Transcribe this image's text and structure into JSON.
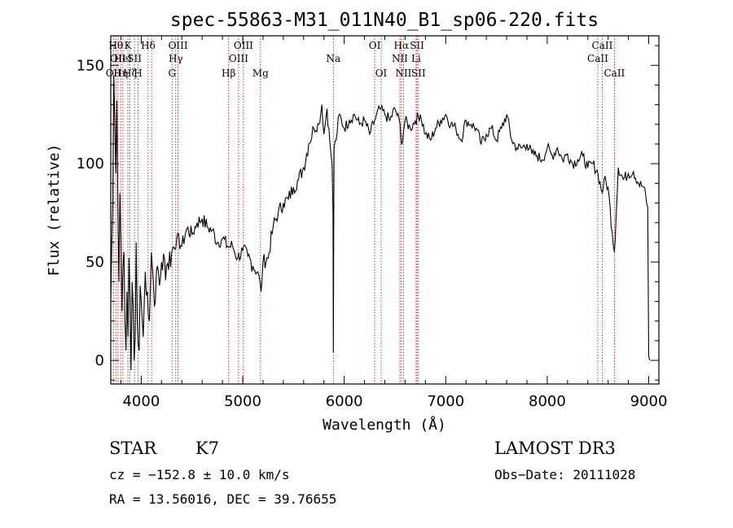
{
  "chart_data": {
    "type": "line",
    "title": "spec-55863-M31_011N40_B1_sp06-220.fits",
    "xlabel": "Wavelength (Å)",
    "ylabel": "Flux (relative)",
    "xlim": [
      3700,
      9100
    ],
    "ylim": [
      -12,
      165
    ],
    "x_ticks": [
      4000,
      5000,
      6000,
      7000,
      8000,
      9000
    ],
    "y_ticks": [
      0,
      50,
      100,
      150
    ],
    "grid": false,
    "line_color": "#000000",
    "marker_color": "#cc0000",
    "spectrum": {
      "x": [
        3700,
        3710,
        3720,
        3730,
        3740,
        3750,
        3760,
        3770,
        3780,
        3790,
        3800,
        3810,
        3820,
        3830,
        3840,
        3850,
        3860,
        3870,
        3880,
        3890,
        3900,
        3910,
        3920,
        3930,
        3940,
        3950,
        3960,
        3970,
        3980,
        3990,
        4000,
        4020,
        4040,
        4060,
        4080,
        4100,
        4120,
        4140,
        4160,
        4180,
        4200,
        4250,
        4300,
        4350,
        4400,
        4450,
        4500,
        4550,
        4600,
        4650,
        4700,
        4750,
        4800,
        4850,
        4900,
        4950,
        5000,
        5050,
        5100,
        5150,
        5180,
        5200,
        5250,
        5300,
        5350,
        5400,
        5450,
        5500,
        5550,
        5600,
        5650,
        5700,
        5750,
        5780,
        5800,
        5830,
        5860,
        5880,
        5890,
        5893,
        5896,
        5900,
        5920,
        5950,
        6000,
        6050,
        6100,
        6150,
        6200,
        6250,
        6300,
        6350,
        6400,
        6450,
        6500,
        6550,
        6563,
        6600,
        6650,
        6700,
        6750,
        6800,
        6850,
        6900,
        6950,
        7000,
        7050,
        7100,
        7150,
        7200,
        7250,
        7300,
        7350,
        7400,
        7450,
        7500,
        7550,
        7600,
        7650,
        7700,
        7750,
        7800,
        7850,
        7900,
        7950,
        8000,
        8050,
        8100,
        8150,
        8200,
        8250,
        8300,
        8350,
        8400,
        8450,
        8500,
        8542,
        8560,
        8600,
        8640,
        8662,
        8680,
        8700,
        8750,
        8800,
        8850,
        8900,
        8950,
        8990,
        9000,
        9010
      ],
      "y": [
        30,
        58,
        80,
        145,
        120,
        95,
        132,
        78,
        40,
        85,
        62,
        25,
        48,
        55,
        20,
        5,
        35,
        12,
        52,
        30,
        -5,
        40,
        28,
        0,
        10,
        60,
        22,
        8,
        5,
        38,
        30,
        12,
        45,
        35,
        20,
        55,
        40,
        30,
        48,
        38,
        50,
        48,
        55,
        62,
        58,
        67,
        64,
        70,
        72,
        68,
        66,
        60,
        62,
        58,
        58,
        52,
        56,
        53,
        48,
        45,
        35,
        50,
        52,
        68,
        75,
        80,
        82,
        88,
        92,
        98,
        110,
        118,
        120,
        130,
        115,
        128,
        110,
        100,
        75,
        4,
        60,
        108,
        112,
        125,
        118,
        122,
        125,
        120,
        122,
        115,
        122,
        128,
        125,
        122,
        128,
        120,
        110,
        122,
        118,
        122,
        125,
        115,
        112,
        118,
        122,
        125,
        120,
        118,
        112,
        122,
        120,
        118,
        110,
        115,
        118,
        112,
        118,
        125,
        112,
        108,
        108,
        110,
        105,
        104,
        102,
        108,
        104,
        108,
        102,
        105,
        100,
        102,
        104,
        98,
        100,
        95,
        85,
        92,
        88,
        65,
        55,
        75,
        98,
        92,
        95,
        96,
        90,
        88,
        78,
        2,
        0
      ]
    },
    "line_markers": [
      {
        "x": 3727,
        "label": "OII",
        "row": 3
      },
      {
        "x": 3750,
        "label": "Hθ",
        "row": 1
      },
      {
        "x": 3771,
        "label": "OII",
        "row": 2
      },
      {
        "x": 3798,
        "label": "Hη",
        "row": 3
      },
      {
        "x": 3820,
        "label": "HeI",
        "row": 2
      },
      {
        "x": 3869,
        "label": "K",
        "row": 1
      },
      {
        "x": 3889,
        "label": "Hζ",
        "row": 3
      },
      {
        "x": 3934,
        "label": "SII",
        "row": 2
      },
      {
        "x": 3969,
        "label": "H",
        "row": 3
      },
      {
        "x": 4068,
        "label": "Hδ",
        "row": 1
      },
      {
        "x": 4102,
        "label": "",
        "row": 0
      },
      {
        "x": 4304,
        "label": "G",
        "row": 3
      },
      {
        "x": 4340,
        "label": "Hγ",
        "row": 2
      },
      {
        "x": 4363,
        "label": "OIII",
        "row": 1
      },
      {
        "x": 4861,
        "label": "Hβ",
        "row": 3
      },
      {
        "x": 4959,
        "label": "OIII",
        "row": 2
      },
      {
        "x": 5007,
        "label": "OIII",
        "row": 1
      },
      {
        "x": 5175,
        "label": "Mg",
        "row": 3
      },
      {
        "x": 5893,
        "label": "Na",
        "row": 2
      },
      {
        "x": 6300,
        "label": "OI",
        "row": 1
      },
      {
        "x": 6364,
        "label": "OI",
        "row": 3
      },
      {
        "x": 6548,
        "label": "NII",
        "row": 2
      },
      {
        "x": 6563,
        "label": "Hα",
        "row": 1
      },
      {
        "x": 6584,
        "label": "NII",
        "row": 3
      },
      {
        "x": 6708,
        "label": "Li",
        "row": 2
      },
      {
        "x": 6717,
        "label": "SII",
        "row": 1
      },
      {
        "x": 6731,
        "label": "SII",
        "row": 3
      },
      {
        "x": 8498,
        "label": "CaII",
        "row": 2
      },
      {
        "x": 8542,
        "label": "CaII",
        "row": 1
      },
      {
        "x": 8662,
        "label": "CaII",
        "row": 3
      }
    ]
  },
  "info": {
    "class": "STAR",
    "subclass": "K7",
    "survey": "LAMOST DR3",
    "cz": "cz = −152.8 ± 10.0 km/s",
    "obs_date": "Obs−Date: 20111028",
    "coords": "RA =  13.56016, DEC =  39.76655"
  }
}
